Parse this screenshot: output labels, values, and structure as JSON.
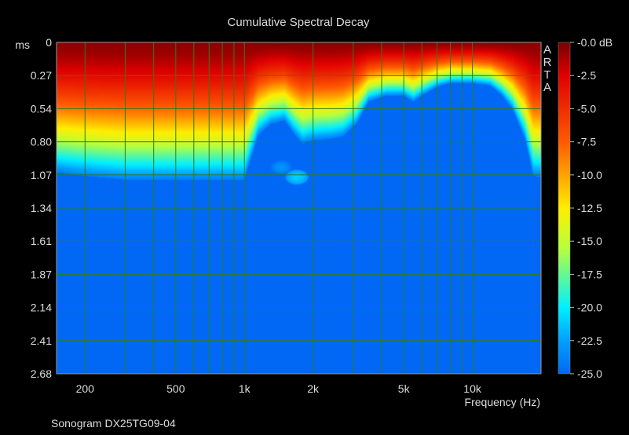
{
  "chart_data": {
    "type": "heatmap",
    "title": "Cumulative Spectral Decay",
    "subtitle": "",
    "xlabel": "Frequency (Hz)",
    "ylabel": "ms",
    "x_scale": "log",
    "xlim": [
      150,
      20000
    ],
    "x_ticks": [
      {
        "value": 200,
        "label": "200"
      },
      {
        "value": 500,
        "label": "500"
      },
      {
        "value": 1000,
        "label": "1k"
      },
      {
        "value": 2000,
        "label": "2k"
      },
      {
        "value": 5000,
        "label": "5k"
      },
      {
        "value": 10000,
        "label": "10k"
      }
    ],
    "x_grid": [
      200,
      300,
      400,
      500,
      600,
      700,
      800,
      900,
      1000,
      2000,
      3000,
      4000,
      5000,
      6000,
      7000,
      8000,
      9000,
      10000
    ],
    "y_ticks": [
      "0",
      "0.27",
      "0.54",
      "0.80",
      "1.07",
      "1.34",
      "1.61",
      "1.87",
      "2.14",
      "2.41",
      "2.68"
    ],
    "ylim": [
      0,
      2.68
    ],
    "grid": true,
    "colorbar": {
      "unit": "dB",
      "range": [
        -25,
        0
      ],
      "ticks": [
        "-0.0 dB",
        "-2.5",
        "-5.0",
        "-7.5",
        "-10.0",
        "-12.5",
        "-15.0",
        "-17.5",
        "-20.0",
        "-22.5",
        "-25.0"
      ]
    },
    "watermark": "ARTA",
    "decay_boundary_ms": {
      "description": "time (ms) at which level decays to about -25 dB, per frequency",
      "freq_hz": [
        150,
        200,
        300,
        400,
        500,
        700,
        850,
        1000,
        1150,
        1300,
        1500,
        1650,
        1800,
        2000,
        2400,
        2700,
        3100,
        3500,
        4200,
        5000,
        5500,
        6000,
        7000,
        8000,
        10000,
        12000,
        13500,
        15000,
        17000,
        18500,
        20000
      ],
      "ms": [
        1.05,
        1.08,
        1.11,
        1.11,
        1.11,
        1.11,
        1.11,
        1.11,
        0.75,
        0.66,
        0.63,
        0.74,
        0.82,
        0.79,
        0.78,
        0.76,
        0.66,
        0.48,
        0.43,
        0.43,
        0.48,
        0.43,
        0.36,
        0.33,
        0.33,
        0.35,
        0.43,
        0.54,
        0.78,
        1.08,
        1.09
      ]
    },
    "decay_islands": [
      {
        "freq_hz": 1700,
        "ms": 1.09,
        "level_db": -21
      },
      {
        "freq_hz": 1450,
        "ms": 1.01,
        "level_db": -23
      }
    ]
  },
  "footer": {
    "measurement_label": "Sonogram DX25TG09-04"
  }
}
